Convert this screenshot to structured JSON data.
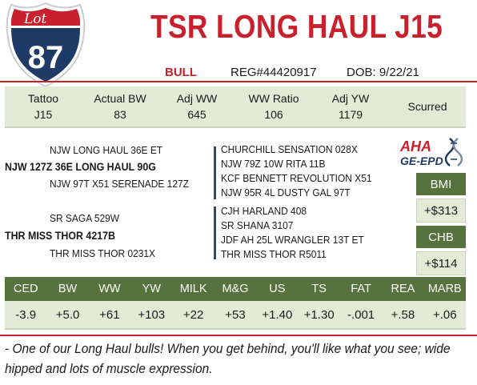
{
  "lot": {
    "label": "Lot",
    "number": "87"
  },
  "title": "TSR LONG HAUL J15",
  "sub": {
    "sex": "BULL",
    "reg": "REG#44420917",
    "dob": "DOB: 9/22/21"
  },
  "stats": [
    {
      "label": "Tattoo",
      "value": "J15"
    },
    {
      "label": "Actual BW",
      "value": "83"
    },
    {
      "label": "Adj WW",
      "value": "645"
    },
    {
      "label": "WW Ratio",
      "value": "106"
    },
    {
      "label": "Adj YW",
      "value": "1179"
    },
    {
      "label": "Scurred",
      "value": ""
    }
  ],
  "pedigree": {
    "sire": "NJW 127Z 36E LONG HAUL 90G",
    "sire_sire": "NJW LONG HAUL 36E ET",
    "sire_dam": "NJW 97T X51 SERENADE 127Z",
    "dam": "THR MISS THOR 4217B",
    "dam_sire": "SR SAGA 529W",
    "dam_dam": "THR MISS THOR 0231X",
    "g1": "CHURCHILL SENSATION 028X",
    "g2": "NJW 79Z 10W RITA 11B",
    "g3": "KCF BENNETT REVOLUTION X51",
    "g4": "NJW 95R 4L DUSTY GAL 97T",
    "g5": "CJH HARLAND 408",
    "g6": "SR SHANA 3107",
    "g7": "JDF AH 25L WRANGLER 13T ET",
    "g8": "THR MISS THOR R5011"
  },
  "logo": {
    "top": "AHA",
    "bottom": "GE-EPD"
  },
  "indexes": [
    {
      "label": "BMI",
      "value": "+$313"
    },
    {
      "label": "CHB",
      "value": "+$114"
    }
  ],
  "epds": [
    {
      "label": "CED",
      "value": "-3.9"
    },
    {
      "label": "BW",
      "value": "+5.0"
    },
    {
      "label": "WW",
      "value": "+61"
    },
    {
      "label": "YW",
      "value": "+103"
    },
    {
      "label": "MILK",
      "value": "+22"
    },
    {
      "label": "M&G",
      "value": "+53"
    },
    {
      "label": "US",
      "value": "+1.40"
    },
    {
      "label": "TS",
      "value": "+1.30"
    },
    {
      "label": "FAT",
      "value": "-.001"
    },
    {
      "label": "REA",
      "value": "+.58"
    },
    {
      "label": "MARB",
      "value": "+.06"
    }
  ],
  "comment": "- One of our Long Haul bulls!  When you get behind, you'll like what you see; wide hipped and lots of muscle expression.",
  "colors": {
    "red": "#c8202c",
    "navy": "#1f3a66",
    "green": "#56733e",
    "light_green": "#e3ebd7"
  }
}
